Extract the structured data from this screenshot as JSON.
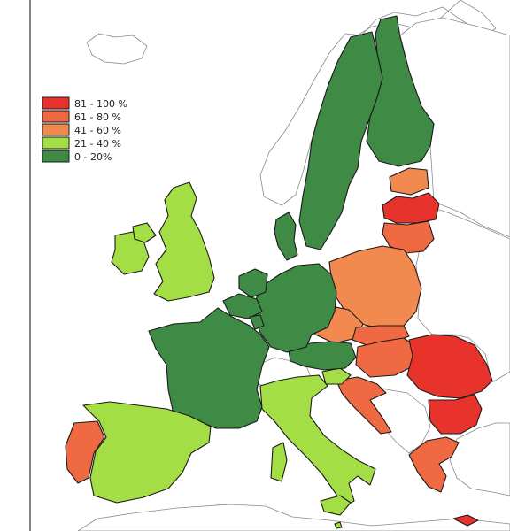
{
  "colors": {
    "band_81_100": "#e8332d",
    "band_61_80": "#ef6a42",
    "band_41_60": "#f2894e",
    "band_21_40": "#a3de45",
    "band_0_20": "#3f8a45",
    "paper": "#ffffff",
    "outline": "#1a1a1a",
    "outline_soft": "#8a8a8a"
  },
  "legend": [
    {
      "label": "81 - 100 %",
      "color_key": "band_81_100"
    },
    {
      "label": "61 - 80 %",
      "color_key": "band_61_80"
    },
    {
      "label": "41 - 60 %",
      "color_key": "band_41_60"
    },
    {
      "label": "21 - 40 %",
      "color_key": "band_21_40"
    },
    {
      "label": "0 - 20%",
      "color_key": "band_0_20"
    }
  ],
  "regions": [
    {
      "id": "finland",
      "band": "band_0_20"
    },
    {
      "id": "sweden",
      "band": "band_0_20"
    },
    {
      "id": "estonia",
      "band": "band_41_60"
    },
    {
      "id": "latvia",
      "band": "band_81_100"
    },
    {
      "id": "lithuania",
      "band": "band_61_80"
    },
    {
      "id": "poland",
      "band": "band_41_60"
    },
    {
      "id": "czechia",
      "band": "band_41_60"
    },
    {
      "id": "slovakia",
      "band": "band_61_80"
    },
    {
      "id": "hungary",
      "band": "band_61_80"
    },
    {
      "id": "romania",
      "band": "band_81_100"
    },
    {
      "id": "bulgaria",
      "band": "band_81_100"
    },
    {
      "id": "greece",
      "band": "band_61_80"
    },
    {
      "id": "croatia",
      "band": "band_61_80"
    },
    {
      "id": "slovenia",
      "band": "band_21_40"
    },
    {
      "id": "austria",
      "band": "band_0_20"
    },
    {
      "id": "germany",
      "band": "band_0_20"
    },
    {
      "id": "denmark",
      "band": "band_0_20"
    },
    {
      "id": "netherlands",
      "band": "band_0_20"
    },
    {
      "id": "belgium",
      "band": "band_0_20"
    },
    {
      "id": "luxembourg",
      "band": "band_0_20"
    },
    {
      "id": "france",
      "band": "band_0_20"
    },
    {
      "id": "italy",
      "band": "band_21_40"
    },
    {
      "id": "sardinia",
      "band": "band_21_40"
    },
    {
      "id": "sicily",
      "band": "band_21_40"
    },
    {
      "id": "spain",
      "band": "band_21_40"
    },
    {
      "id": "portugal",
      "band": "band_61_80"
    },
    {
      "id": "great-britain",
      "band": "band_21_40"
    },
    {
      "id": "ireland",
      "band": "band_21_40"
    },
    {
      "id": "northern-ireland",
      "band": "band_21_40"
    },
    {
      "id": "cyprus",
      "band": "band_81_100"
    },
    {
      "id": "malta",
      "band": "band_21_40"
    },
    {
      "id": "switzerland",
      "band": "paper"
    },
    {
      "id": "norway",
      "band": "paper"
    },
    {
      "id": "iceland",
      "band": "paper"
    },
    {
      "id": "balkans-west",
      "band": "paper"
    },
    {
      "id": "eastern-europe",
      "band": "paper"
    },
    {
      "id": "russia",
      "band": "paper"
    },
    {
      "id": "turkey",
      "band": "paper"
    },
    {
      "id": "north-africa",
      "band": "paper"
    }
  ]
}
